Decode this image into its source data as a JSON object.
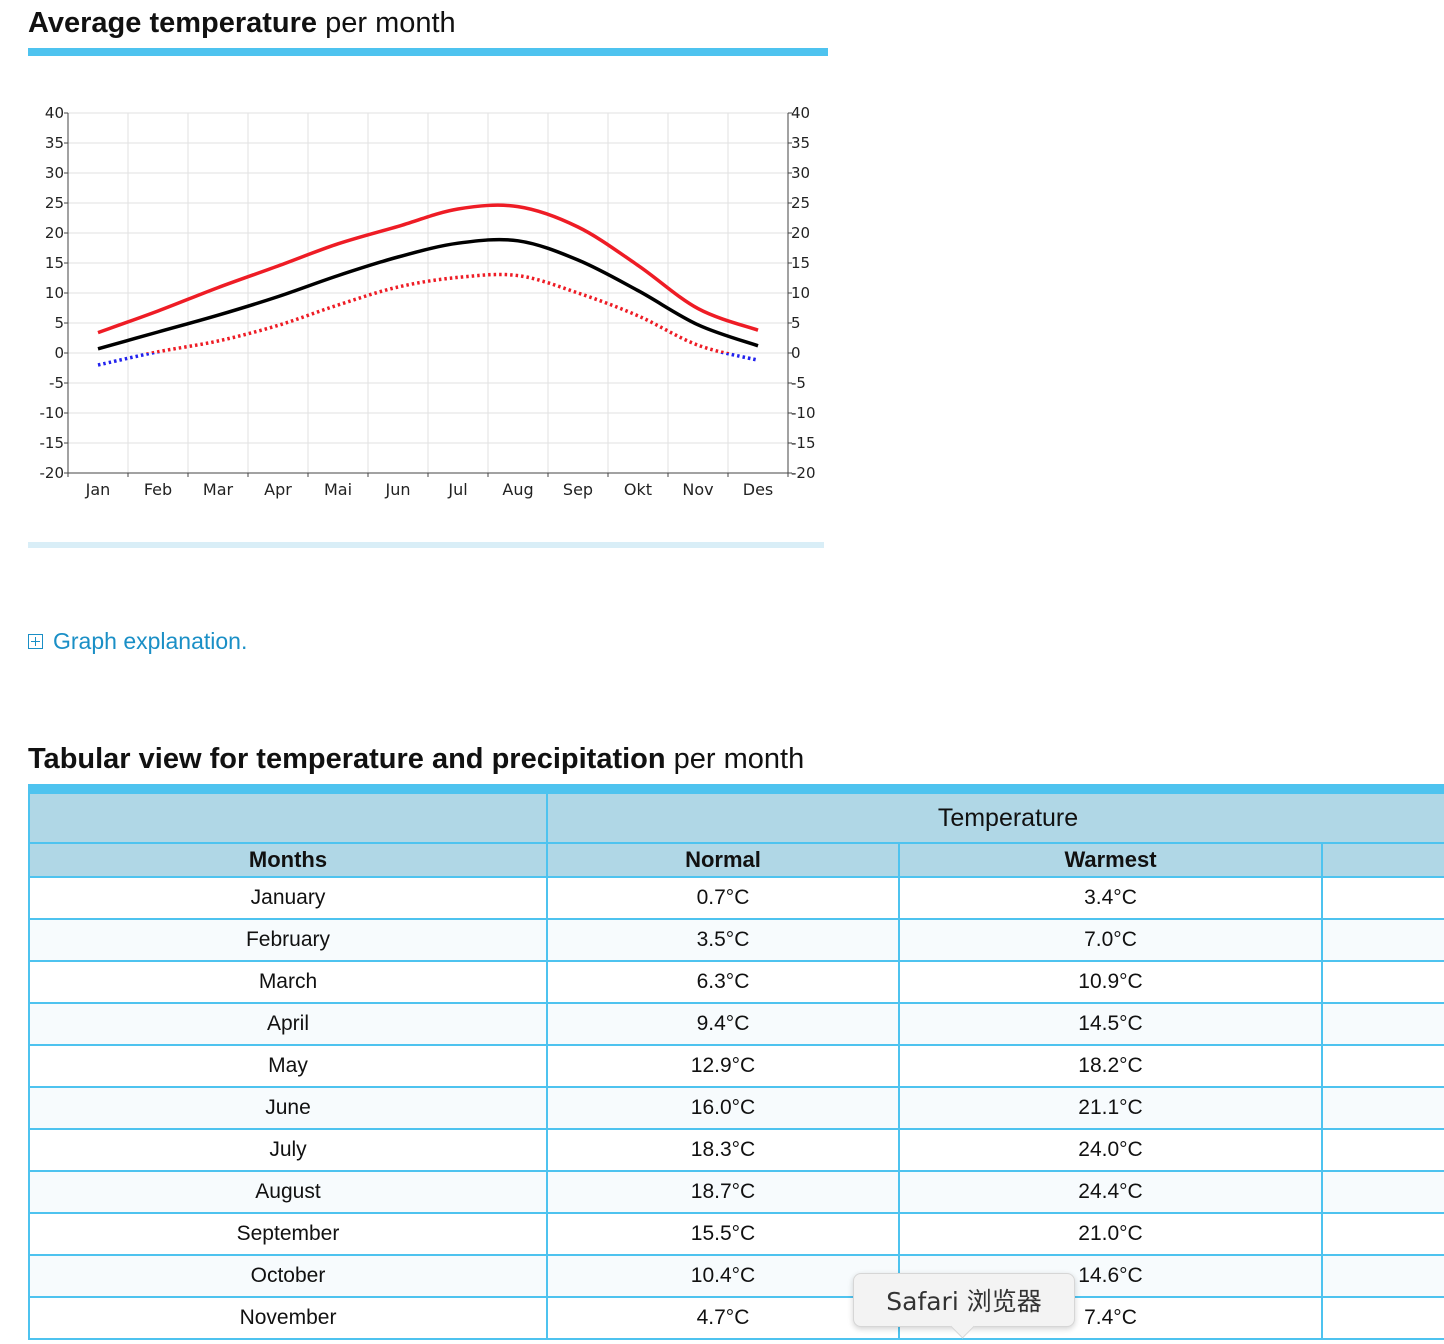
{
  "section1": {
    "title_bold": "Average temperature",
    "title_light": " per month"
  },
  "graph_explanation": "Graph explanation.",
  "section2": {
    "title_bold": "Tabular view for temperature and precipitation",
    "title_light": " per month"
  },
  "table": {
    "group_header": "Temperature",
    "columns": [
      "Months",
      "Normal",
      "Warmest",
      ""
    ],
    "rows": [
      [
        "January",
        "0.7°C",
        "3.4°C"
      ],
      [
        "February",
        "3.5°C",
        "7.0°C"
      ],
      [
        "March",
        "6.3°C",
        "10.9°C"
      ],
      [
        "April",
        "9.4°C",
        "14.5°C"
      ],
      [
        "May",
        "12.9°C",
        "18.2°C"
      ],
      [
        "June",
        "16.0°C",
        "21.1°C"
      ],
      [
        "July",
        "18.3°C",
        "24.0°C"
      ],
      [
        "August",
        "18.7°C",
        "24.4°C"
      ],
      [
        "September",
        "15.5°C",
        "21.0°C"
      ],
      [
        "October",
        "10.4°C",
        "14.6°C"
      ],
      [
        "November",
        "4.7°C",
        "7.4°C"
      ]
    ]
  },
  "tooltip": "Safari 浏览器",
  "chart_data": {
    "type": "line",
    "title": "",
    "categories": [
      "Jan",
      "Feb",
      "Mar",
      "Apr",
      "Mai",
      "Jun",
      "Jul",
      "Aug",
      "Sep",
      "Okt",
      "Nov",
      "Des"
    ],
    "ylim": [
      -20,
      40
    ],
    "yticks": [
      40,
      35,
      30,
      25,
      20,
      15,
      10,
      5,
      0,
      -5,
      -10,
      -15,
      -20
    ],
    "grid": true,
    "series": [
      {
        "values": [
          3.4,
          7.0,
          10.9,
          14.5,
          18.2,
          21.1,
          24.0,
          24.4,
          21.0,
          14.6,
          7.4,
          3.8
        ],
        "color": "#ee1c25",
        "style": "solid"
      },
      {
        "values": [
          0.7,
          3.5,
          6.3,
          9.4,
          12.9,
          16.0,
          18.3,
          18.7,
          15.5,
          10.4,
          4.7,
          1.2
        ],
        "color": "#000000",
        "style": "solid"
      },
      {
        "values": [
          -2.0,
          0.2,
          2.0,
          4.6,
          8.0,
          11.0,
          12.6,
          12.9,
          10.0,
          6.2,
          1.3,
          -1.2
        ],
        "color": "#ee1c25",
        "negative_color": "#2222ee",
        "style": "dotted"
      }
    ]
  }
}
